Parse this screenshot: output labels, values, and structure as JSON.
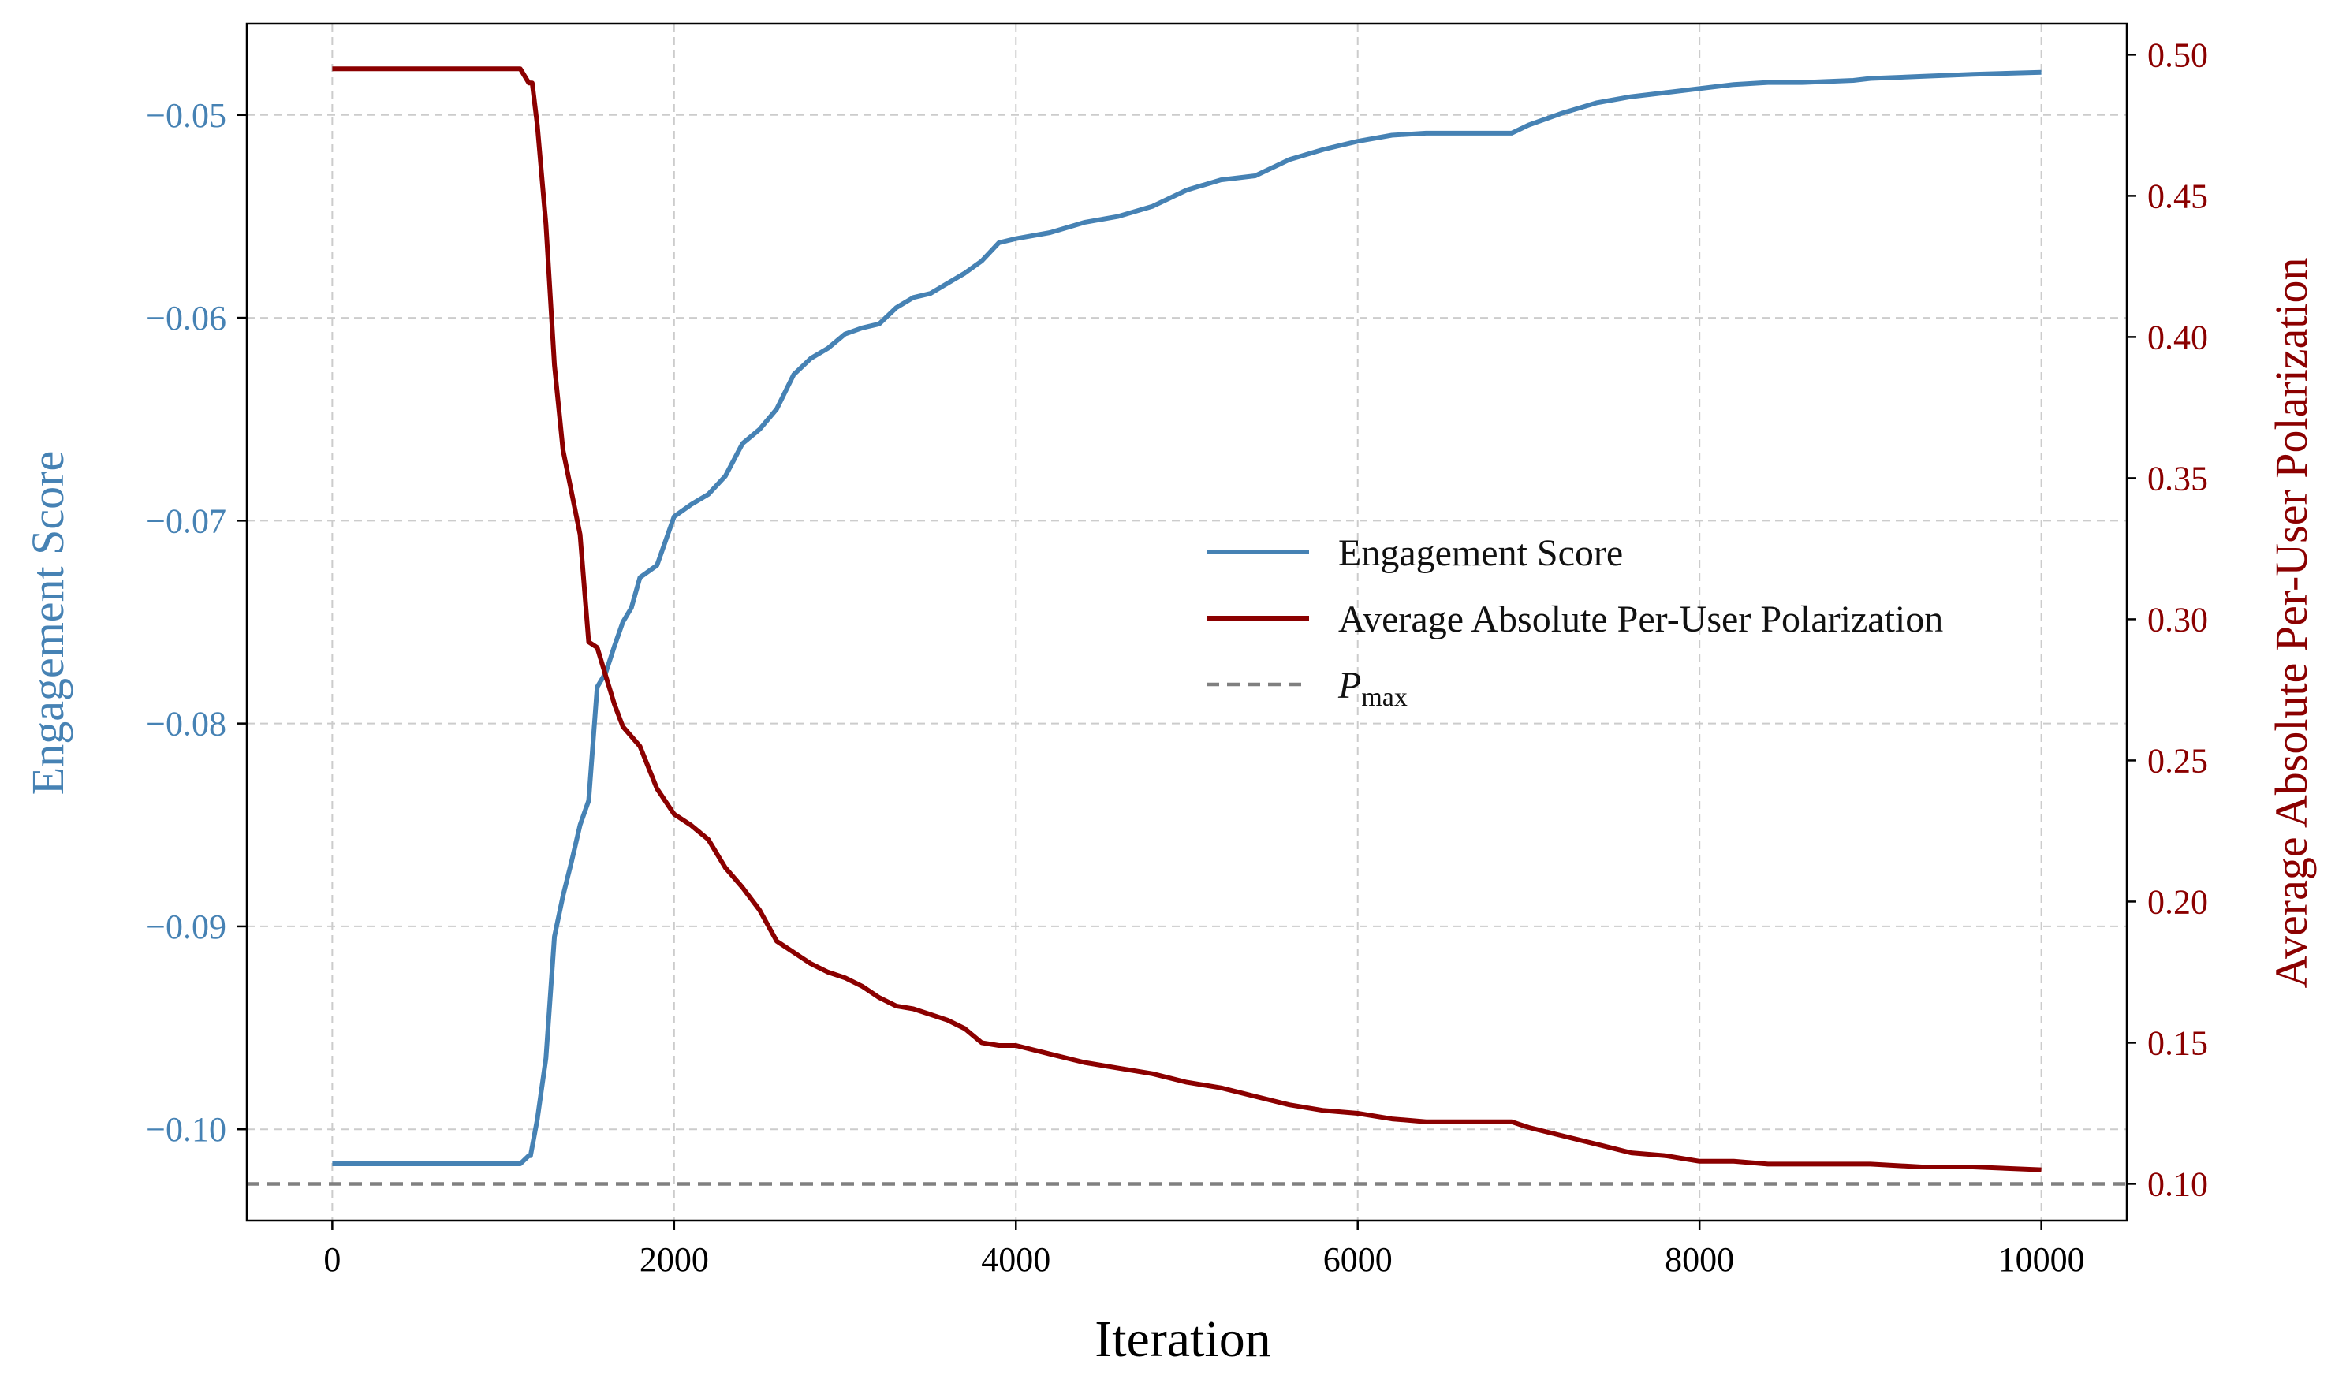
{
  "chart_data": {
    "type": "line",
    "xlabel": "Iteration",
    "ylabel_left": "Engagement Score",
    "ylabel_right": "Average Absolute Per-User Polarization",
    "xlim": [
      -500,
      10500
    ],
    "ylim_left": [
      -0.1045,
      -0.0455
    ],
    "ylim_right": [
      0.087,
      0.511
    ],
    "x_ticks": [
      0,
      2000,
      4000,
      6000,
      8000,
      10000
    ],
    "x_tick_labels": [
      "0",
      "2000",
      "4000",
      "6000",
      "8000",
      "10000"
    ],
    "left_ticks": [
      -0.05,
      -0.06,
      -0.07,
      -0.08,
      -0.09,
      -0.1
    ],
    "left_tick_labels": [
      "−0.05",
      "−0.06",
      "−0.07",
      "−0.08",
      "−0.09",
      "−0.10"
    ],
    "right_ticks": [
      0.5,
      0.45,
      0.4,
      0.35,
      0.3,
      0.25,
      0.2,
      0.15,
      0.1
    ],
    "right_tick_labels": [
      "0.50",
      "0.45",
      "0.40",
      "0.35",
      "0.30",
      "0.25",
      "0.20",
      "0.15",
      "0.10"
    ],
    "grid": true,
    "legend_position": "center-right",
    "colors": {
      "engagement": "#4682b4",
      "polarization": "#8b0000",
      "pmax": "#808080"
    },
    "legend": [
      {
        "label": "Engagement Score",
        "style": "solid",
        "color": "#4682b4"
      },
      {
        "label": "Average Absolute Per-User Polarization",
        "style": "solid",
        "color": "#8b0000"
      },
      {
        "label": "P",
        "subscript": "max",
        "style": "dashed",
        "color": "#808080"
      }
    ],
    "series": [
      {
        "name": "Engagement Score",
        "axis": "left",
        "x": [
          0,
          1100,
          1150,
          1160,
          1200,
          1250,
          1300,
          1350,
          1400,
          1450,
          1500,
          1550,
          1600,
          1650,
          1700,
          1750,
          1800,
          1900,
          2000,
          2100,
          2200,
          2300,
          2400,
          2500,
          2600,
          2700,
          2800,
          2900,
          3000,
          3100,
          3200,
          3300,
          3400,
          3500,
          3600,
          3700,
          3800,
          3900,
          4000,
          4200,
          4400,
          4600,
          4800,
          5000,
          5200,
          5400,
          5600,
          5800,
          6000,
          6200,
          6400,
          6600,
          6900,
          7000,
          7200,
          7400,
          7600,
          7800,
          8000,
          8200,
          8400,
          8600,
          8900,
          9000,
          9300,
          9600,
          10000
        ],
        "y": [
          -0.1017,
          -0.1017,
          -0.1013,
          -0.1013,
          -0.0995,
          -0.0965,
          -0.0905,
          -0.0885,
          -0.0868,
          -0.085,
          -0.0838,
          -0.0782,
          -0.0775,
          -0.0762,
          -0.075,
          -0.0743,
          -0.0728,
          -0.0722,
          -0.0698,
          -0.0692,
          -0.0687,
          -0.0678,
          -0.0662,
          -0.0655,
          -0.0645,
          -0.0628,
          -0.062,
          -0.0615,
          -0.0608,
          -0.0605,
          -0.0603,
          -0.0595,
          -0.059,
          -0.0588,
          -0.0583,
          -0.0578,
          -0.0572,
          -0.0563,
          -0.0561,
          -0.0558,
          -0.0553,
          -0.055,
          -0.0545,
          -0.0537,
          -0.0532,
          -0.053,
          -0.0522,
          -0.0517,
          -0.0513,
          -0.051,
          -0.0509,
          -0.0509,
          -0.0509,
          -0.0505,
          -0.0499,
          -0.0494,
          -0.0491,
          -0.0489,
          -0.0487,
          -0.0485,
          -0.0484,
          -0.0484,
          -0.0483,
          -0.0482,
          -0.0481,
          -0.048,
          -0.0479
        ]
      },
      {
        "name": "Average Absolute Per-User Polarization",
        "axis": "right",
        "x": [
          0,
          1100,
          1150,
          1170,
          1200,
          1250,
          1300,
          1350,
          1400,
          1450,
          1500,
          1550,
          1600,
          1650,
          1700,
          1800,
          1900,
          2000,
          2100,
          2200,
          2300,
          2400,
          2500,
          2600,
          2700,
          2800,
          2900,
          3000,
          3100,
          3200,
          3300,
          3400,
          3500,
          3600,
          3700,
          3800,
          3900,
          4000,
          4200,
          4400,
          4600,
          4800,
          5000,
          5200,
          5400,
          5600,
          5800,
          6000,
          6200,
          6400,
          6600,
          6900,
          7000,
          7200,
          7400,
          7600,
          7800,
          8000,
          8200,
          8400,
          8600,
          8900,
          9000,
          9300,
          9600,
          10000
        ],
        "y": [
          0.495,
          0.495,
          0.49,
          0.49,
          0.475,
          0.44,
          0.39,
          0.36,
          0.345,
          0.33,
          0.292,
          0.29,
          0.28,
          0.27,
          0.262,
          0.255,
          0.24,
          0.231,
          0.227,
          0.222,
          0.212,
          0.205,
          0.197,
          0.186,
          0.182,
          0.178,
          0.175,
          0.173,
          0.17,
          0.166,
          0.163,
          0.162,
          0.16,
          0.158,
          0.155,
          0.15,
          0.149,
          0.149,
          0.146,
          0.143,
          0.141,
          0.139,
          0.136,
          0.134,
          0.131,
          0.128,
          0.126,
          0.125,
          0.123,
          0.122,
          0.122,
          0.122,
          0.12,
          0.117,
          0.114,
          0.111,
          0.11,
          0.108,
          0.108,
          0.107,
          0.107,
          0.107,
          0.107,
          0.106,
          0.106,
          0.105
        ]
      },
      {
        "name": "P_max",
        "axis": "right",
        "type": "hline",
        "y": 0.1
      }
    ]
  }
}
